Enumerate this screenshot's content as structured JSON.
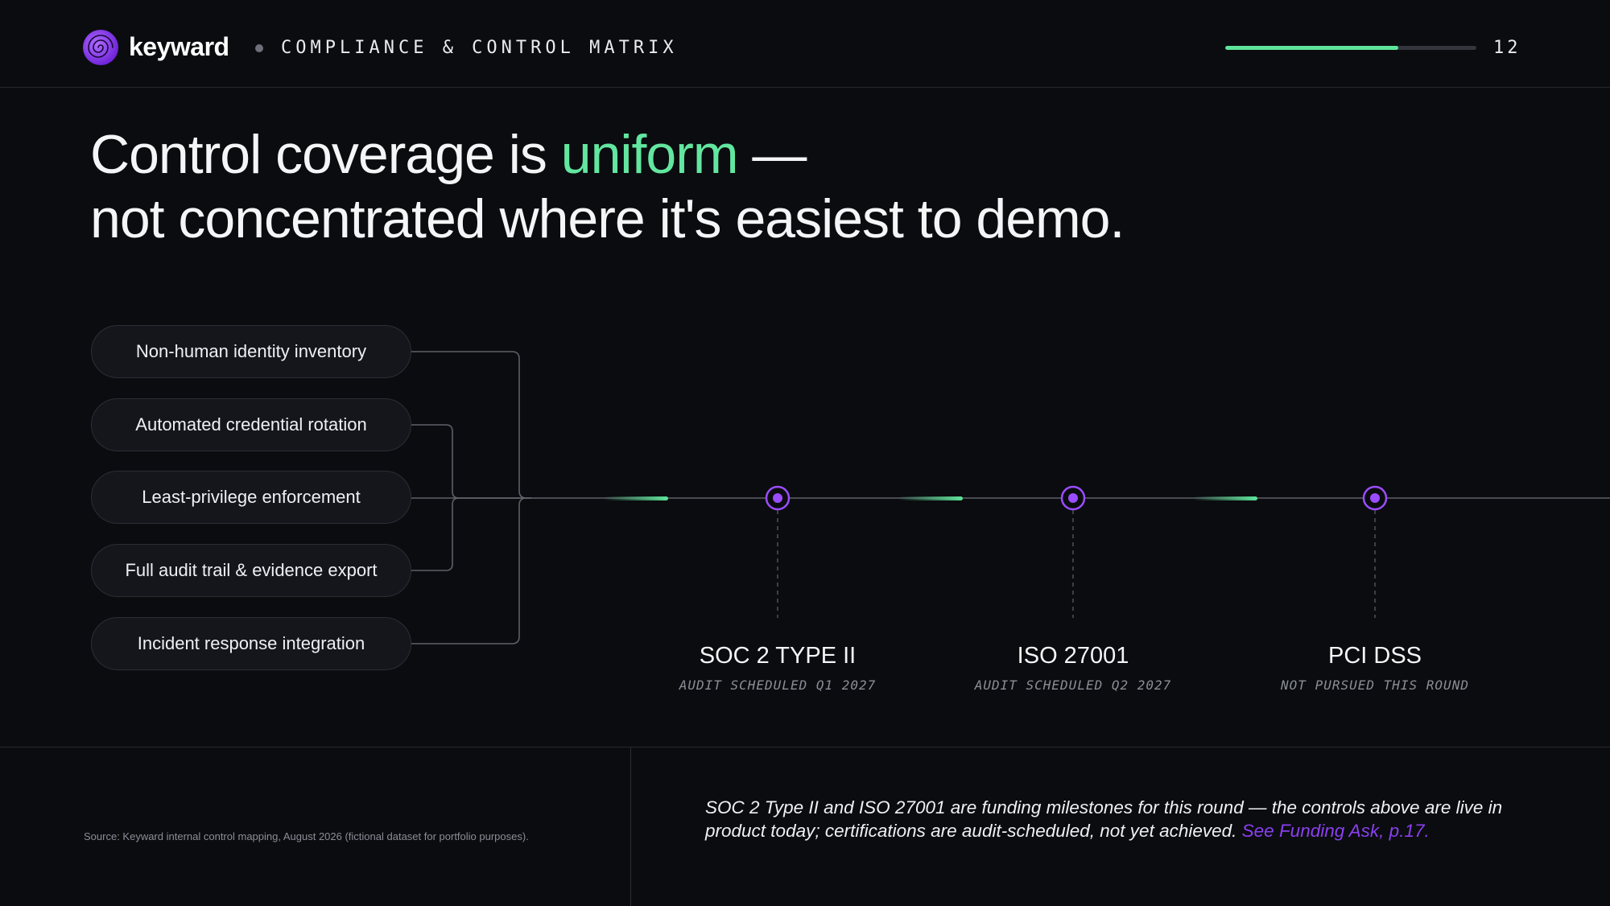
{
  "header": {
    "brand": "keyward",
    "section_title": "COMPLIANCE & CONTROL MATRIX",
    "progress": 0.69,
    "page_number": "12",
    "colors": {
      "accent_green": "#5ee59b",
      "accent_purple": "#8a3ff0"
    }
  },
  "headline": {
    "line1_before": "Control coverage is",
    "line1_accent": "uniform",
    "line1_after": "—",
    "line2": "not concentrated where it's easiest to demo."
  },
  "controls": [
    {
      "label": "Non-human identity inventory"
    },
    {
      "label": "Automated credential rotation"
    },
    {
      "label": "Least-privilege enforcement"
    },
    {
      "label": "Full audit trail & evidence export"
    },
    {
      "label": "Incident response integration"
    }
  ],
  "certifications": [
    {
      "name": "SOC 2 TYPE II",
      "status": "AUDIT SCHEDULED Q1 2027"
    },
    {
      "name": "ISO 27001",
      "status": "AUDIT SCHEDULED Q2 2027"
    },
    {
      "name": "PCI DSS",
      "status": "NOT PURSUED THIS ROUND"
    }
  ],
  "footer": {
    "source": "Source: Keyward internal control mapping, August 2026 (fictional dataset for portfolio purposes).",
    "note": "SOC 2 Type II and ISO 27001 are funding milestones for this round — the controls above are live in product today; certifications are audit-scheduled, not yet achieved.",
    "link": "See Funding Ask, p.17."
  },
  "icons": {
    "logo": "fingerprint-logo-icon"
  }
}
